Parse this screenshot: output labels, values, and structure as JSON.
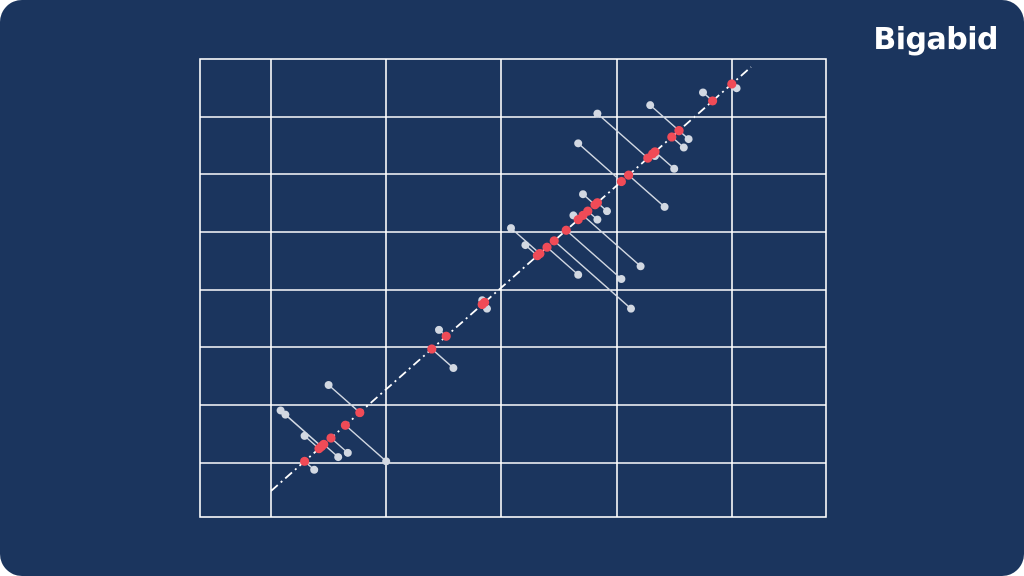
{
  "brand": {
    "logo_text": "Bigabid"
  },
  "colors": {
    "background": "#1b355e",
    "grid": "#ffffff",
    "point": "#d2d8e2",
    "projection": "#f04b57",
    "line": "#ffffff"
  },
  "diagram": {
    "description_type": "orthogonal-projection-onto-line",
    "grid_columns": 7,
    "grid_rows": 8,
    "fit_line": {
      "from": [
        0,
        0
      ],
      "to": [
        10,
        10
      ]
    },
    "point_pairs": [
      {
        "point": [
          0.2,
          1.9
        ],
        "projection": [
          1.05,
          1.05
        ]
      },
      {
        "point": [
          0.3,
          1.8
        ],
        "projection": [
          1.05,
          1.05
        ]
      },
      {
        "point": [
          0.7,
          1.3
        ],
        "projection": [
          1.0,
          1.0
        ]
      },
      {
        "point": [
          0.9,
          0.5
        ],
        "projection": [
          0.7,
          0.7
        ]
      },
      {
        "point": [
          1.4,
          0.8
        ],
        "projection": [
          1.1,
          1.1
        ]
      },
      {
        "point": [
          1.6,
          0.9
        ],
        "projection": [
          1.25,
          1.25
        ]
      },
      {
        "point": [
          2.4,
          0.7
        ],
        "projection": [
          1.55,
          1.55
        ]
      },
      {
        "point": [
          1.2,
          2.5
        ],
        "projection": [
          1.85,
          1.85
        ]
      },
      {
        "point": [
          3.5,
          3.8
        ],
        "projection": [
          3.65,
          3.65
        ]
      },
      {
        "point": [
          3.8,
          2.9
        ],
        "projection": [
          3.35,
          3.35
        ]
      },
      {
        "point": [
          4.4,
          4.5
        ],
        "projection": [
          4.45,
          4.45
        ]
      },
      {
        "point": [
          4.5,
          4.3
        ],
        "projection": [
          4.4,
          4.4
        ]
      },
      {
        "point": [
          5.0,
          6.2
        ],
        "projection": [
          5.6,
          5.6
        ]
      },
      {
        "point": [
          5.6,
          5.6
        ],
        "projection": [
          5.6,
          5.6
        ]
      },
      {
        "point": [
          6.3,
          6.5
        ],
        "projection": [
          6.4,
          6.4
        ]
      },
      {
        "point": [
          6.4,
          5.1
        ],
        "projection": [
          5.75,
          5.75
        ]
      },
      {
        "point": [
          6.5,
          7.0
        ],
        "projection": [
          6.75,
          6.75
        ]
      },
      {
        "point": [
          6.8,
          6.4
        ],
        "projection": [
          6.6,
          6.6
        ]
      },
      {
        "point": [
          5.3,
          5.8
        ],
        "projection": [
          5.55,
          5.55
        ]
      },
      {
        "point": [
          7.0,
          6.6
        ],
        "projection": [
          6.8,
          6.8
        ]
      },
      {
        "point": [
          7.3,
          5.0
        ],
        "projection": [
          6.15,
          6.15
        ]
      },
      {
        "point": [
          7.5,
          4.3
        ],
        "projection": [
          5.9,
          5.9
        ]
      },
      {
        "point": [
          6.4,
          8.2
        ],
        "projection": [
          7.3,
          7.3
        ]
      },
      {
        "point": [
          7.7,
          5.3
        ],
        "projection": [
          6.5,
          6.5
        ]
      },
      {
        "point": [
          8.2,
          6.7
        ],
        "projection": [
          7.45,
          7.45
        ]
      },
      {
        "point": [
          6.8,
          8.9
        ],
        "projection": [
          7.85,
          7.85
        ]
      },
      {
        "point": [
          7.9,
          9.1
        ],
        "projection": [
          8.5,
          8.5
        ]
      },
      {
        "point": [
          8.4,
          7.6
        ],
        "projection": [
          8.0,
          8.0
        ]
      },
      {
        "point": [
          8.0,
          7.9
        ],
        "projection": [
          7.95,
          7.95
        ]
      },
      {
        "point": [
          8.7,
          8.3
        ],
        "projection": [
          8.5,
          8.5
        ]
      },
      {
        "point": [
          8.6,
          8.1
        ],
        "projection": [
          8.35,
          8.35
        ]
      },
      {
        "point": [
          9.0,
          9.4
        ],
        "projection": [
          9.2,
          9.2
        ]
      },
      {
        "point": [
          9.7,
          9.5
        ],
        "projection": [
          9.6,
          9.6
        ]
      }
    ]
  }
}
